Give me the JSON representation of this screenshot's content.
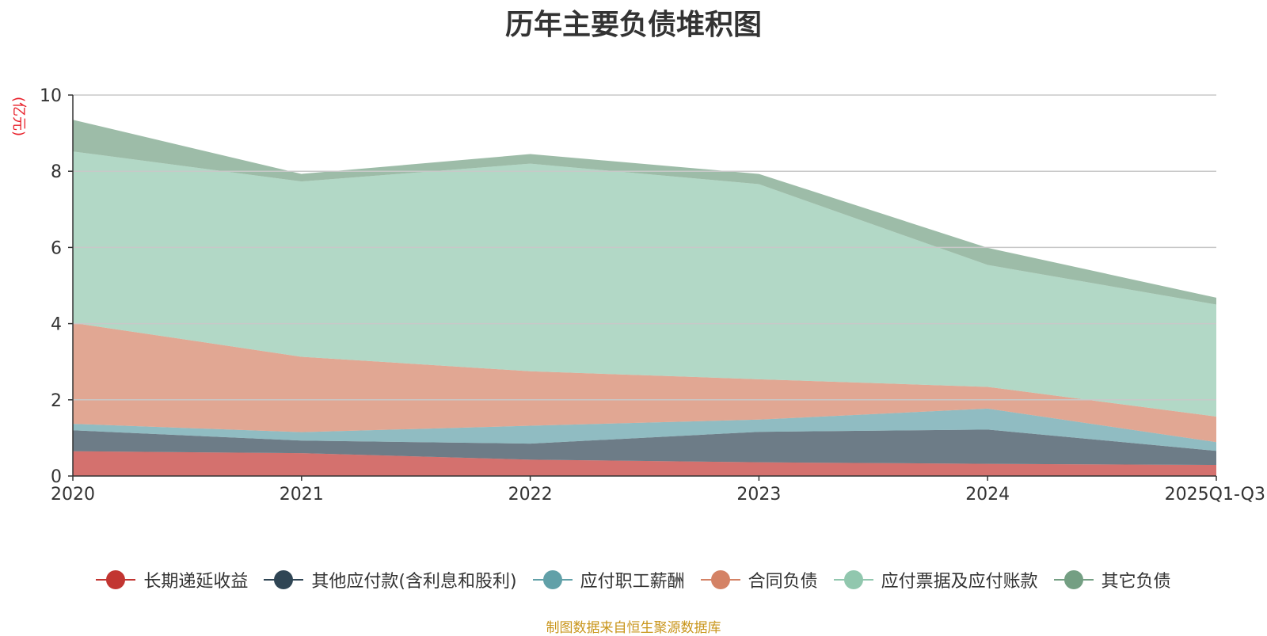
{
  "title": "历年主要负债堆积图",
  "unit_label": "(亿元)",
  "source": "制图数据来自恒生聚源数据库",
  "chart_data": {
    "type": "area",
    "stacked": true,
    "title": "历年主要负债堆积图",
    "ylabel": "(亿元)",
    "ylim": [
      0,
      10
    ],
    "yticks": [
      0,
      2,
      4,
      6,
      8,
      10
    ],
    "grid": true,
    "legend_position": "bottom",
    "categories": [
      "2020",
      "2021",
      "2022",
      "2023",
      "2024",
      "2025Q1-Q3"
    ],
    "series": [
      {
        "name": "长期递延收益",
        "color": "#c23531",
        "values": [
          0.65,
          0.6,
          0.43,
          0.36,
          0.32,
          0.29
        ]
      },
      {
        "name": "其他应付款(含利息和股利)",
        "color": "#2f4554",
        "values": [
          0.55,
          0.33,
          0.42,
          0.8,
          0.9,
          0.37
        ]
      },
      {
        "name": "应付职工薪酬",
        "color": "#61a0a8",
        "values": [
          0.17,
          0.22,
          0.47,
          0.32,
          0.55,
          0.23
        ]
      },
      {
        "name": "合同负债",
        "color": "#d48265",
        "values": [
          2.65,
          1.98,
          1.43,
          1.06,
          0.57,
          0.67
        ]
      },
      {
        "name": "应付票据及应付账款",
        "color": "#91c7ae",
        "values": [
          4.5,
          4.6,
          5.45,
          5.12,
          3.2,
          2.94
        ]
      },
      {
        "name": "其它负债",
        "color": "#749f83",
        "values": [
          0.83,
          0.2,
          0.25,
          0.27,
          0.45,
          0.18
        ]
      }
    ]
  }
}
